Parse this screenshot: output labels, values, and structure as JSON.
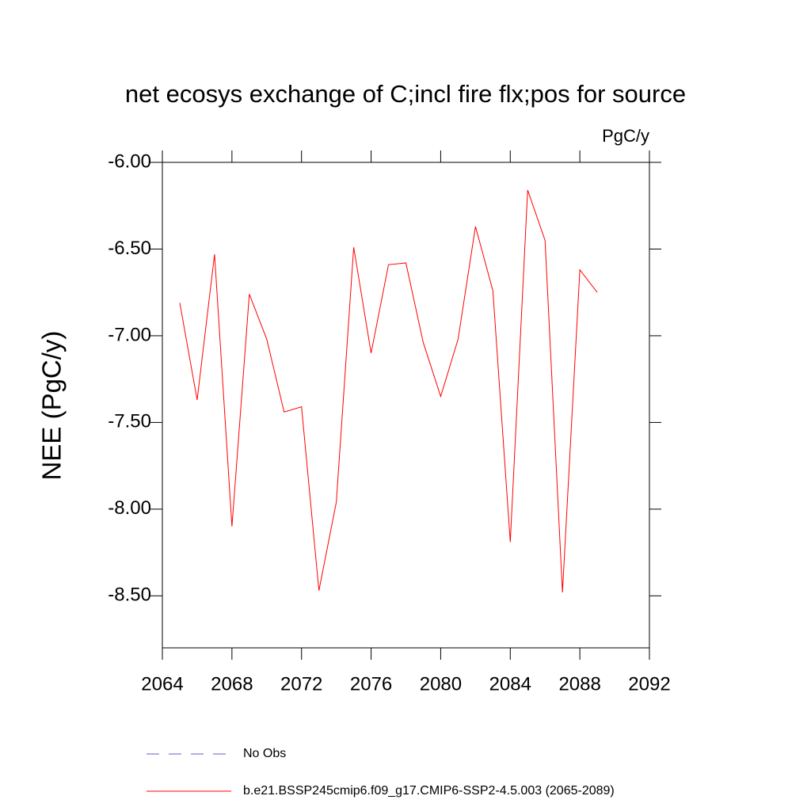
{
  "chart_data": {
    "type": "line",
    "title": "net ecosys exchange of C;incl fire flx;pos for source",
    "units": "PgC/y",
    "y_label": "NEE  (PgC/y)",
    "x": [
      2065,
      2066,
      2067,
      2068,
      2069,
      2070,
      2071,
      2072,
      2073,
      2074,
      2075,
      2076,
      2077,
      2078,
      2079,
      2080,
      2081,
      2082,
      2083,
      2084,
      2085,
      2086,
      2087,
      2088,
      2089
    ],
    "series": [
      {
        "name": "No Obs",
        "color": "#6a5acd",
        "dashed": true,
        "values": [
          null,
          null,
          null,
          null,
          null,
          null,
          null,
          null,
          null,
          null,
          null,
          null,
          null,
          null,
          null,
          null,
          null,
          null,
          null,
          null,
          null,
          null,
          null,
          null,
          null
        ]
      },
      {
        "name": "b.e21.BSSP245cmip6.f09_g17.CMIP6-SSP2-4.5.003 (2065-2089)",
        "color": "#ff0000",
        "dashed": false,
        "values": [
          -6.81,
          -7.37,
          -6.53,
          -8.1,
          -6.76,
          -7.02,
          -7.44,
          -7.41,
          -8.47,
          -7.96,
          -6.49,
          -7.1,
          -6.59,
          -6.58,
          -7.04,
          -7.35,
          -7.02,
          -6.37,
          -6.74,
          -8.19,
          -6.16,
          -6.45,
          -8.48,
          -6.62,
          -6.75
        ]
      }
    ],
    "xlim": [
      2064,
      2092
    ],
    "xticks": [
      2064,
      2068,
      2072,
      2076,
      2080,
      2084,
      2088,
      2092
    ],
    "ylim": [
      -8.8,
      -6.0
    ],
    "yticks": [
      {
        "value": -6.0,
        "label": "-6.00"
      },
      {
        "value": -6.5,
        "label": "-6.50"
      },
      {
        "value": -7.0,
        "label": "-7.00"
      },
      {
        "value": -7.5,
        "label": "-7.50"
      },
      {
        "value": -8.0,
        "label": "-8.00"
      },
      {
        "value": -8.5,
        "label": "-8.50"
      }
    ]
  }
}
